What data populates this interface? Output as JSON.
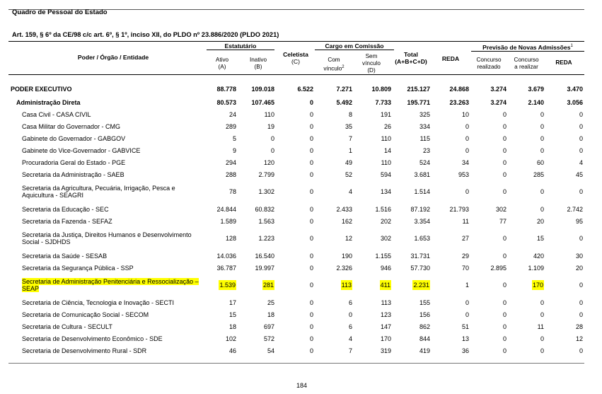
{
  "document": {
    "title": "Quadro de Pessoal do Estado",
    "subtitle": "Art. 159, § 6º da CE/98 c/c art. 6º, § 1º, inciso XII, do PLDO nº 23.886/2020 (PLDO 2021)",
    "page_number": "184"
  },
  "header": {
    "entity": "Poder / Órgão / Entidade",
    "estatutario": "Estatutário",
    "ativo": "Ativo",
    "ativo_code": "(A)",
    "inativo": "Inativo",
    "inativo_code": "(B)",
    "celetista": "Celetista",
    "celetista_code": "(C)",
    "cargo_comissao": "Cargo em Comissão",
    "com_vinculo": "Com",
    "com_vinculo_2": "vínculo",
    "sem_vinculo": "Sem",
    "sem_vinculo_2": "vínculo",
    "sem_vinculo_code": "(D)",
    "total": "Total",
    "total_formula": "(A+B+C+D)",
    "reda": "REDA",
    "previsao": "Previsão de Novas Admissões",
    "concurso_realizado": "Concurso",
    "concurso_realizado_2": "realizado",
    "concurso_realizar": "Concurso",
    "concurso_realizar_2": "a realizar",
    "reda2": "REDA",
    "sup1": "1",
    "sup2": "2"
  },
  "rows": [
    {
      "level": 0,
      "name": "PODER EXECUTIVO",
      "ativo": "88.778",
      "inativo": "109.018",
      "celetista": "6.522",
      "com": "7.271",
      "sem": "10.809",
      "total": "215.127",
      "reda": "24.868",
      "realizado": "3.274",
      "realizar": "3.679",
      "reda2": "3.470"
    },
    {
      "level": 1,
      "name": "Administração Direta",
      "ativo": "80.573",
      "inativo": "107.465",
      "celetista": "0",
      "com": "5.492",
      "sem": "7.733",
      "total": "195.771",
      "reda": "23.263",
      "realizado": "3.274",
      "realizar": "2.140",
      "reda2": "3.056"
    },
    {
      "level": 2,
      "name": "Casa Civil - CASA CIVIL",
      "ativo": "24",
      "inativo": "110",
      "celetista": "0",
      "com": "8",
      "sem": "191",
      "total": "325",
      "reda": "10",
      "realizado": "0",
      "realizar": "0",
      "reda2": "0"
    },
    {
      "level": 2,
      "name": "Casa Militar do Governador - CMG",
      "ativo": "289",
      "inativo": "19",
      "celetista": "0",
      "com": "35",
      "sem": "26",
      "total": "334",
      "reda": "0",
      "realizado": "0",
      "realizar": "0",
      "reda2": "0"
    },
    {
      "level": 2,
      "name": "Gabinete do Governador - GABGOV",
      "ativo": "5",
      "inativo": "0",
      "celetista": "0",
      "com": "7",
      "sem": "110",
      "total": "115",
      "reda": "0",
      "realizado": "0",
      "realizar": "0",
      "reda2": "0"
    },
    {
      "level": 2,
      "name": "Gabinete do Vice-Governador - GABVICE",
      "ativo": "9",
      "inativo": "0",
      "celetista": "0",
      "com": "1",
      "sem": "14",
      "total": "23",
      "reda": "0",
      "realizado": "0",
      "realizar": "0",
      "reda2": "0"
    },
    {
      "level": 2,
      "name": "Procuradoria Geral do Estado - PGE",
      "ativo": "294",
      "inativo": "120",
      "celetista": "0",
      "com": "49",
      "sem": "110",
      "total": "524",
      "reda": "34",
      "realizado": "0",
      "realizar": "60",
      "reda2": "4"
    },
    {
      "level": 2,
      "name": "Secretaria da Administração - SAEB",
      "ativo": "288",
      "inativo": "2.799",
      "celetista": "0",
      "com": "52",
      "sem": "594",
      "total": "3.681",
      "reda": "953",
      "realizado": "0",
      "realizar": "285",
      "reda2": "45"
    },
    {
      "level": 2,
      "tall": true,
      "name": "Secretaria da Agricultura, Pecuária, Irrigação, Pesca e Aquicultura - SEAGRI",
      "ativo": "78",
      "inativo": "1.302",
      "celetista": "0",
      "com": "4",
      "sem": "134",
      "total": "1.514",
      "reda": "0",
      "realizado": "0",
      "realizar": "0",
      "reda2": "0"
    },
    {
      "level": 2,
      "name": "Secretaria da Educação - SEC",
      "ativo": "24.844",
      "inativo": "60.832",
      "celetista": "0",
      "com": "2.433",
      "sem": "1.516",
      "total": "87.192",
      "reda": "21.793",
      "realizado": "302",
      "realizar": "0",
      "reda2": "2.742"
    },
    {
      "level": 2,
      "name": "Secretaria da Fazenda - SEFAZ",
      "ativo": "1.589",
      "inativo": "1.563",
      "celetista": "0",
      "com": "162",
      "sem": "202",
      "total": "3.354",
      "reda": "11",
      "realizado": "77",
      "realizar": "20",
      "reda2": "95"
    },
    {
      "level": 2,
      "tall": true,
      "name": "Secretaria da Justiça, Direitos Humanos e Desenvolvimento Social - SJDHDS",
      "ativo": "128",
      "inativo": "1.223",
      "celetista": "0",
      "com": "12",
      "sem": "302",
      "total": "1.653",
      "reda": "27",
      "realizado": "0",
      "realizar": "15",
      "reda2": "0"
    },
    {
      "level": 2,
      "name": "Secretaria da Saúde - SESAB",
      "ativo": "14.036",
      "inativo": "16.540",
      "celetista": "0",
      "com": "190",
      "sem": "1.155",
      "total": "31.731",
      "reda": "29",
      "realizado": "0",
      "realizar": "420",
      "reda2": "30"
    },
    {
      "level": 2,
      "name": "Secretaria da Segurança Pública - SSP",
      "ativo": "36.787",
      "inativo": "19.997",
      "celetista": "0",
      "com": "2.326",
      "sem": "946",
      "total": "57.730",
      "reda": "70",
      "realizado": "2.895",
      "realizar": "1.109",
      "reda2": "20"
    },
    {
      "level": 2,
      "tall": true,
      "highlight": true,
      "name": "Secretaria de Administração Penitenciária e Ressocialização – SEAP",
      "ativo": "1.539",
      "inativo": "281",
      "celetista": "0",
      "com": "113",
      "sem": "411",
      "total": "2.231",
      "reda": "1",
      "realizado": "0",
      "realizar": "170",
      "reda2": "0"
    },
    {
      "level": 2,
      "name": "Secretaria de Ciência, Tecnologia e Inovação - SECTI",
      "ativo": "17",
      "inativo": "25",
      "celetista": "0",
      "com": "6",
      "sem": "113",
      "total": "155",
      "reda": "0",
      "realizado": "0",
      "realizar": "0",
      "reda2": "0"
    },
    {
      "level": 2,
      "name": "Secretaria de Comunicação Social - SECOM",
      "ativo": "15",
      "inativo": "18",
      "celetista": "0",
      "com": "0",
      "sem": "123",
      "total": "156",
      "reda": "0",
      "realizado": "0",
      "realizar": "0",
      "reda2": "0"
    },
    {
      "level": 2,
      "name": "Secretaria de Cultura - SECULT",
      "ativo": "18",
      "inativo": "697",
      "celetista": "0",
      "com": "6",
      "sem": "147",
      "total": "862",
      "reda": "51",
      "realizado": "0",
      "realizar": "11",
      "reda2": "28"
    },
    {
      "level": 2,
      "name": "Secretaria de Desenvolvimento Econômico - SDE",
      "ativo": "102",
      "inativo": "572",
      "celetista": "0",
      "com": "4",
      "sem": "170",
      "total": "844",
      "reda": "13",
      "realizado": "0",
      "realizar": "0",
      "reda2": "12"
    },
    {
      "level": 2,
      "name": "Secretaria de Desenvolvimento Rural - SDR",
      "ativo": "46",
      "inativo": "54",
      "celetista": "0",
      "com": "7",
      "sem": "319",
      "total": "419",
      "reda": "36",
      "realizado": "0",
      "realizar": "0",
      "reda2": "0"
    }
  ]
}
